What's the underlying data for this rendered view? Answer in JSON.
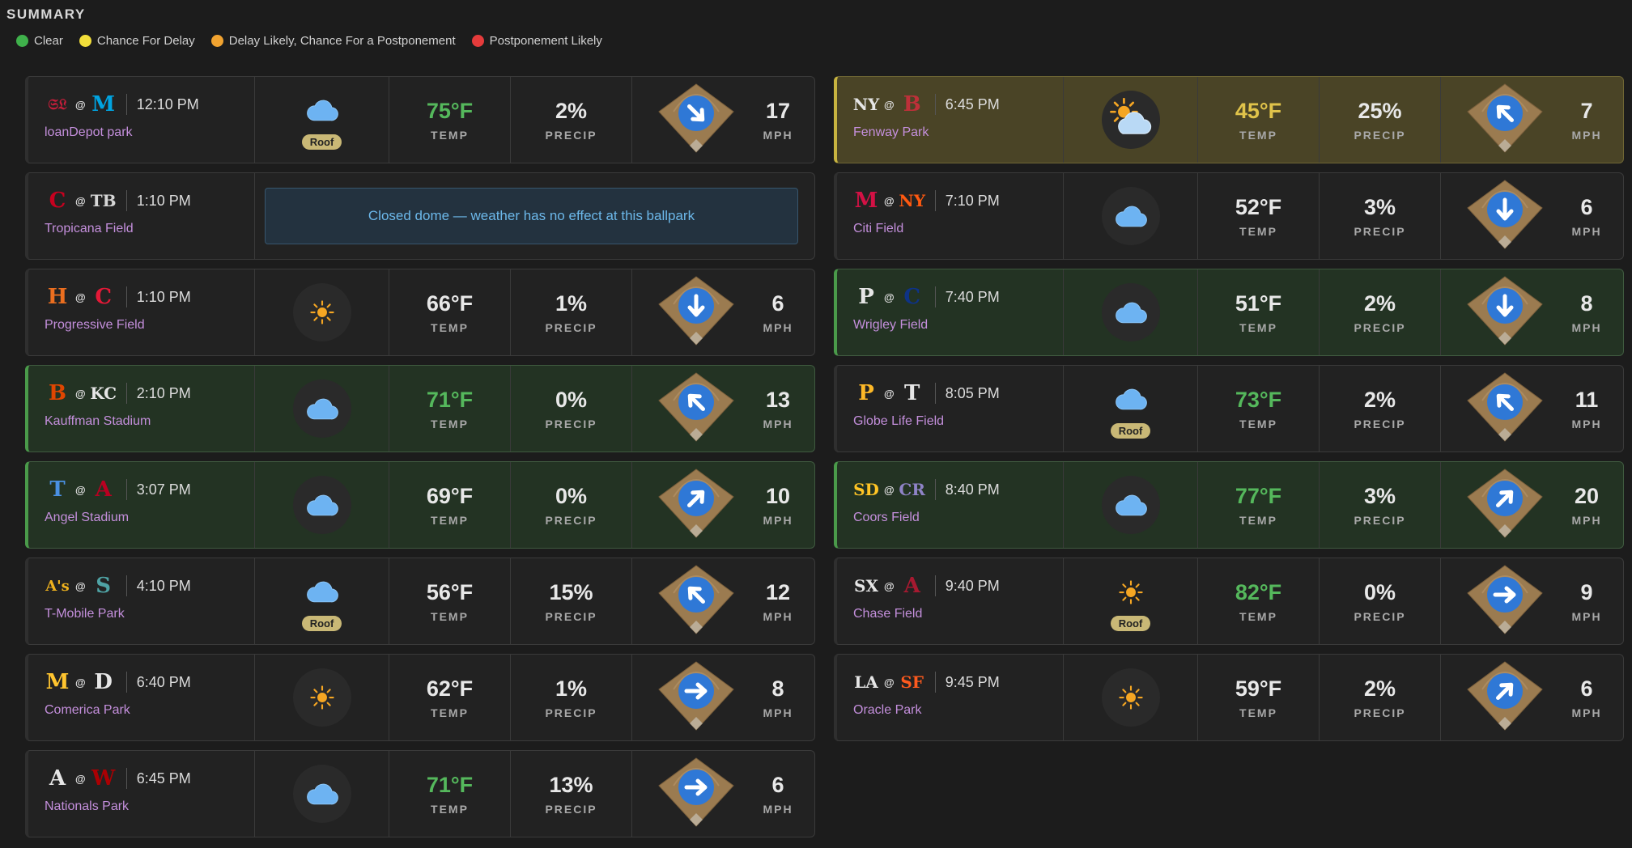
{
  "summary_title": "SUMMARY",
  "legend": [
    {
      "label": "Clear",
      "color": "#3fb14b"
    },
    {
      "label": "Chance For Delay",
      "color": "#f2de3a"
    },
    {
      "label": "Delay Likely, Chance For a Postponement",
      "color": "#f1a330"
    },
    {
      "label": "Postponement Likely",
      "color": "#e53b3b"
    }
  ],
  "at_symbol": "@",
  "temp_label": "TEMP",
  "precip_label": "PRECIP",
  "wind_label": "MPH",
  "roof_label": "Roof",
  "left_games": [
    {
      "away": {
        "abbr": "STL",
        "glyph": "𝔖𝔏",
        "color": "#c41e3a"
      },
      "home": {
        "abbr": "MIA",
        "glyph": "M",
        "color": "#00a3e0"
      },
      "time": "12:10 PM",
      "park": "loanDepot park",
      "status": "clear",
      "sky": "cloud",
      "roof": true,
      "temp": "75°F",
      "temp_color": "green",
      "precip": "2%",
      "wind_dir": "down-right",
      "wind": "17"
    },
    {
      "away": {
        "abbr": "CIN",
        "glyph": "C",
        "color": "#c6011f"
      },
      "home": {
        "abbr": "TB",
        "glyph": "TB",
        "color": "#d6d6d6"
      },
      "time": "1:10 PM",
      "park": "Tropicana Field",
      "status": "clear",
      "dome": "Closed dome — weather has no effect at this ballpark"
    },
    {
      "away": {
        "abbr": "HOU",
        "glyph": "H",
        "color": "#eb6e1f"
      },
      "home": {
        "abbr": "CLE",
        "glyph": "C",
        "color": "#e31937"
      },
      "time": "1:10 PM",
      "park": "Progressive Field",
      "status": "clear",
      "sky": "sun",
      "roof": false,
      "temp": "66°F",
      "temp_color": "white",
      "precip": "1%",
      "wind_dir": "down",
      "wind": "6"
    },
    {
      "away": {
        "abbr": "BAL",
        "glyph": "B",
        "color": "#df4601"
      },
      "home": {
        "abbr": "KC",
        "glyph": "KC",
        "color": "#e6e6e6"
      },
      "time": "2:10 PM",
      "park": "Kauffman Stadium",
      "status": "green",
      "sky": "cloud",
      "roof": false,
      "temp": "71°F",
      "temp_color": "green",
      "precip": "0%",
      "wind_dir": "up-left",
      "wind": "13"
    },
    {
      "away": {
        "abbr": "TOR",
        "glyph": "T",
        "color": "#4a90e2"
      },
      "home": {
        "abbr": "LAA",
        "glyph": "A",
        "color": "#ba0021"
      },
      "time": "3:07 PM",
      "park": "Angel Stadium",
      "status": "green",
      "sky": "cloud",
      "roof": false,
      "temp": "69°F",
      "temp_color": "white",
      "precip": "0%",
      "wind_dir": "up-right",
      "wind": "10"
    },
    {
      "away": {
        "abbr": "OAK",
        "glyph": "A's",
        "color": "#efb21e"
      },
      "home": {
        "abbr": "SEA",
        "glyph": "S",
        "color": "#4fa3a5"
      },
      "time": "4:10 PM",
      "park": "T-Mobile Park",
      "status": "clear",
      "sky": "cloud",
      "roof": true,
      "temp": "56°F",
      "temp_color": "white",
      "precip": "15%",
      "wind_dir": "up-left",
      "wind": "12"
    },
    {
      "away": {
        "abbr": "MIL",
        "glyph": "M",
        "color": "#ffc52f"
      },
      "home": {
        "abbr": "DET",
        "glyph": "D",
        "color": "#e6e6e6"
      },
      "time": "6:40 PM",
      "park": "Comerica Park",
      "status": "clear",
      "sky": "sun",
      "roof": false,
      "temp": "62°F",
      "temp_color": "white",
      "precip": "1%",
      "wind_dir": "right",
      "wind": "8"
    },
    {
      "away": {
        "abbr": "ATL",
        "glyph": "A",
        "color": "#e6e6e6"
      },
      "home": {
        "abbr": "WSH",
        "glyph": "W",
        "color": "#ab0003"
      },
      "time": "6:45 PM",
      "park": "Nationals Park",
      "status": "clear",
      "sky": "cloud",
      "roof": false,
      "temp": "71°F",
      "temp_color": "green",
      "precip": "13%",
      "wind_dir": "right",
      "wind": "6"
    }
  ],
  "right_games": [
    {
      "away": {
        "abbr": "NYY",
        "glyph": "NY",
        "color": "#e6e6e6"
      },
      "home": {
        "abbr": "BOS",
        "glyph": "B",
        "color": "#bd3039"
      },
      "time": "6:45 PM",
      "park": "Fenway Park",
      "status": "yellow",
      "sky": "partly",
      "roof": false,
      "temp": "45°F",
      "temp_color": "yellow",
      "precip": "25%",
      "wind_dir": "up-left",
      "wind": "7"
    },
    {
      "away": {
        "abbr": "MIN",
        "glyph": "M",
        "color": "#d31145"
      },
      "home": {
        "abbr": "NYM",
        "glyph": "NY",
        "color": "#ff5910"
      },
      "time": "7:10 PM",
      "park": "Citi Field",
      "status": "clear",
      "sky": "cloud",
      "roof": false,
      "temp": "52°F",
      "temp_color": "white",
      "precip": "3%",
      "wind_dir": "down",
      "wind": "6"
    },
    {
      "away": {
        "abbr": "PHI",
        "glyph": "P",
        "color": "#e6e6e6"
      },
      "home": {
        "abbr": "CHC",
        "glyph": "C",
        "color": "#0e3386"
      },
      "time": "7:40 PM",
      "park": "Wrigley Field",
      "status": "green",
      "sky": "cloud",
      "roof": false,
      "temp": "51°F",
      "temp_color": "white",
      "precip": "2%",
      "wind_dir": "down",
      "wind": "8"
    },
    {
      "away": {
        "abbr": "PIT",
        "glyph": "P",
        "color": "#fdb827"
      },
      "home": {
        "abbr": "TEX",
        "glyph": "T",
        "color": "#e6e6e6"
      },
      "time": "8:05 PM",
      "park": "Globe Life Field",
      "status": "clear",
      "sky": "cloud",
      "roof": true,
      "temp": "73°F",
      "temp_color": "green",
      "precip": "2%",
      "wind_dir": "up-left",
      "wind": "11"
    },
    {
      "away": {
        "abbr": "SD",
        "glyph": "SD",
        "color": "#ffc425"
      },
      "home": {
        "abbr": "COL",
        "glyph": "CR",
        "color": "#8f83c7"
      },
      "time": "8:40 PM",
      "park": "Coors Field",
      "status": "green",
      "sky": "cloud",
      "roof": false,
      "temp": "77°F",
      "temp_color": "green",
      "precip": "3%",
      "wind_dir": "up-right",
      "wind": "20"
    },
    {
      "away": {
        "abbr": "CWS",
        "glyph": "SX",
        "color": "#e6e6e6"
      },
      "home": {
        "abbr": "ARI",
        "glyph": "A",
        "color": "#a71930"
      },
      "time": "9:40 PM",
      "park": "Chase Field",
      "status": "clear",
      "sky": "sun",
      "roof": true,
      "temp": "82°F",
      "temp_color": "green",
      "precip": "0%",
      "wind_dir": "right",
      "wind": "9"
    },
    {
      "away": {
        "abbr": "LAD",
        "glyph": "LA",
        "color": "#e6e6e6"
      },
      "home": {
        "abbr": "SF",
        "glyph": "SF",
        "color": "#fd5a1e"
      },
      "time": "9:45 PM",
      "park": "Oracle Park",
      "status": "clear",
      "sky": "sun",
      "roof": false,
      "temp": "59°F",
      "temp_color": "white",
      "precip": "2%",
      "wind_dir": "up-right",
      "wind": "6"
    }
  ]
}
